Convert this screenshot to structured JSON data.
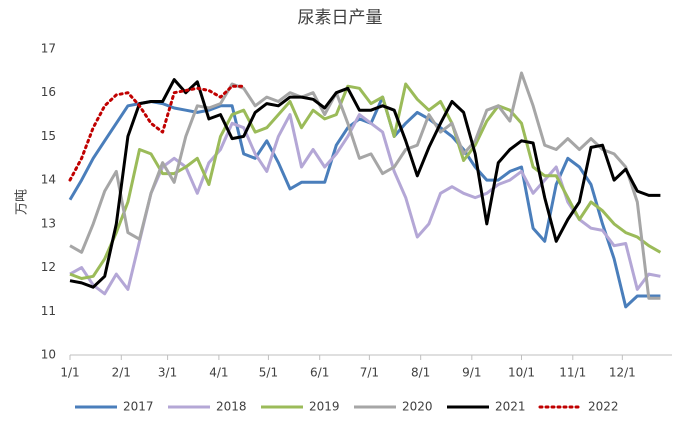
{
  "chart_data": {
    "type": "line",
    "title": "尿素日产量",
    "y_label": "万吨",
    "x": [
      0,
      1,
      2,
      3,
      4,
      5,
      6,
      7,
      8,
      9,
      10,
      11,
      12,
      13,
      14,
      15,
      16,
      17,
      18,
      19,
      20,
      21,
      22,
      23,
      24,
      25,
      26,
      27,
      28,
      29,
      30,
      31,
      32,
      33,
      34,
      35,
      36,
      37,
      38,
      39,
      40,
      41,
      42,
      43,
      44,
      45,
      46,
      47,
      48,
      49,
      50,
      51
    ],
    "xlim": [
      0,
      52
    ],
    "xticks": [
      {
        "value": 0,
        "label": "1/1"
      },
      {
        "value": 4.43,
        "label": "2/1"
      },
      {
        "value": 8.43,
        "label": "3/1"
      },
      {
        "value": 12.86,
        "label": "4/1"
      },
      {
        "value": 17.14,
        "label": "5/1"
      },
      {
        "value": 21.57,
        "label": "6/1"
      },
      {
        "value": 25.86,
        "label": "7/1"
      },
      {
        "value": 30.29,
        "label": "8/1"
      },
      {
        "value": 34.71,
        "label": "9/1"
      },
      {
        "value": 39,
        "label": "10/1"
      },
      {
        "value": 43.43,
        "label": "11/1"
      },
      {
        "value": 47.71,
        "label": "12/1"
      }
    ],
    "ylim": [
      10,
      17
    ],
    "yticks": [
      10,
      11,
      12,
      13,
      14,
      15,
      16,
      17
    ],
    "grid": false,
    "series": [
      {
        "name": "2017",
        "color": "#4a7ebb",
        "dash": false,
        "values": [
          13.55,
          14.0,
          14.5,
          14.9,
          15.3,
          15.7,
          15.75,
          15.8,
          15.75,
          15.65,
          15.6,
          15.55,
          15.6,
          15.7,
          15.7,
          14.6,
          14.5,
          14.9,
          14.4,
          13.8,
          13.95,
          13.95,
          13.95,
          14.8,
          15.2,
          15.4,
          15.3,
          15.9,
          15.0,
          15.3,
          15.55,
          15.4,
          15.2,
          15.0,
          14.7,
          14.3,
          14.0,
          14.0,
          14.2,
          14.3,
          12.9,
          12.6,
          13.9,
          14.5,
          14.3,
          13.9,
          13.0,
          12.2,
          11.1,
          11.35,
          11.35,
          11.35
        ]
      },
      {
        "name": "2018",
        "color": "#b4a7d6",
        "dash": false,
        "values": [
          11.85,
          12.0,
          11.6,
          11.4,
          11.85,
          11.5,
          12.6,
          13.7,
          14.3,
          14.5,
          14.3,
          13.7,
          14.4,
          14.7,
          15.3,
          15.2,
          14.6,
          14.2,
          15.0,
          15.5,
          14.3,
          14.7,
          14.3,
          14.6,
          15.0,
          15.5,
          15.3,
          15.1,
          14.2,
          13.6,
          12.7,
          13.0,
          13.7,
          13.85,
          13.7,
          13.6,
          13.7,
          13.9,
          14.0,
          14.2,
          13.7,
          14.0,
          14.3,
          13.5,
          13.1,
          12.9,
          12.85,
          12.5,
          12.55,
          11.5,
          11.85,
          11.8
        ]
      },
      {
        "name": "2019",
        "color": "#9bbb59",
        "dash": false,
        "values": [
          11.85,
          11.75,
          11.8,
          12.2,
          12.8,
          13.5,
          14.7,
          14.6,
          14.15,
          14.15,
          14.3,
          14.5,
          13.9,
          15.0,
          15.5,
          15.6,
          15.1,
          15.2,
          15.5,
          15.8,
          15.2,
          15.6,
          15.4,
          15.5,
          16.15,
          16.1,
          15.75,
          15.9,
          15.0,
          16.2,
          15.85,
          15.6,
          15.8,
          15.3,
          14.45,
          14.8,
          15.35,
          15.7,
          15.6,
          15.3,
          14.3,
          14.1,
          14.1,
          13.6,
          13.1,
          13.5,
          13.3,
          13.0,
          12.8,
          12.7,
          12.5,
          12.35
        ]
      },
      {
        "name": "2020",
        "color": "#a6a6a6",
        "dash": false,
        "values": [
          12.5,
          12.35,
          13.0,
          13.75,
          14.2,
          12.8,
          12.65,
          13.7,
          14.4,
          13.95,
          15.0,
          15.7,
          15.65,
          15.75,
          16.2,
          16.1,
          15.7,
          15.9,
          15.8,
          16.0,
          15.9,
          16.0,
          15.5,
          16.0,
          15.3,
          14.5,
          14.6,
          14.15,
          14.3,
          14.7,
          14.8,
          15.5,
          15.1,
          15.3,
          14.6,
          14.9,
          15.6,
          15.7,
          15.35,
          16.45,
          15.7,
          14.8,
          14.7,
          14.95,
          14.7,
          14.95,
          14.7,
          14.6,
          14.3,
          13.5,
          11.3,
          11.3
        ]
      },
      {
        "name": "2021",
        "color": "#000000",
        "dash": false,
        "values": [
          11.7,
          11.65,
          11.55,
          11.8,
          13.0,
          15.0,
          15.75,
          15.8,
          15.8,
          16.3,
          16.0,
          16.25,
          15.4,
          15.5,
          14.95,
          15.0,
          15.55,
          15.75,
          15.7,
          15.9,
          15.9,
          15.85,
          15.65,
          16.0,
          16.1,
          15.6,
          15.6,
          15.7,
          15.6,
          14.9,
          14.1,
          14.75,
          15.3,
          15.8,
          15.55,
          14.6,
          13.0,
          14.4,
          14.7,
          14.9,
          14.85,
          13.6,
          12.6,
          13.1,
          13.5,
          14.75,
          14.8,
          14.0,
          14.25,
          13.75,
          13.65,
          13.65
        ]
      },
      {
        "name": "2022",
        "color": "#c00000",
        "dash": true,
        "values": [
          14.0,
          14.5,
          15.2,
          15.7,
          15.95,
          16.0,
          15.7,
          15.3,
          15.1,
          16.0,
          16.05,
          16.1,
          16.05,
          15.9,
          16.15,
          16.15,
          null,
          null,
          null,
          null,
          null,
          null,
          null,
          null,
          null,
          null,
          null,
          null,
          null,
          null,
          null,
          null,
          null,
          null,
          null,
          null,
          null,
          null,
          null,
          null,
          null,
          null,
          null,
          null,
          null,
          null,
          null,
          null,
          null,
          null,
          null,
          null
        ]
      }
    ]
  }
}
